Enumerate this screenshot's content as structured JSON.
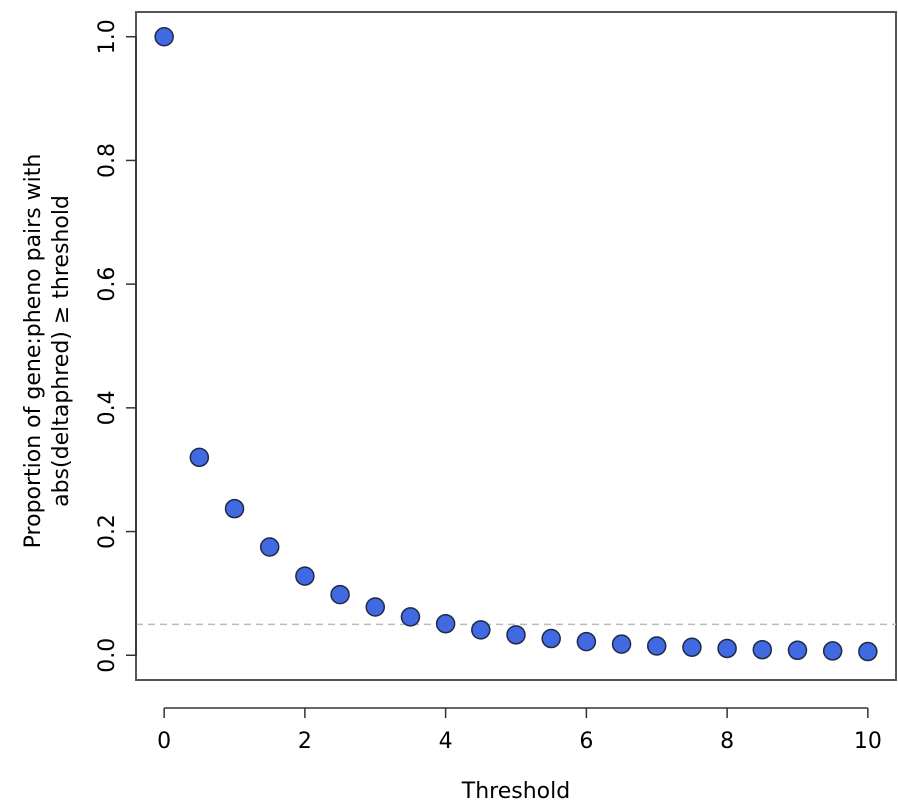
{
  "chart_data": {
    "type": "scatter",
    "title": "",
    "xlabel": "Threshold",
    "ylabel_lines": [
      "Proportion of gene:pheno pairs with",
      "abs(deltaphred) ≥ threshold"
    ],
    "xlim": [
      -0.4,
      10.4
    ],
    "ylim": [
      -0.04,
      1.04
    ],
    "x_ticks": [
      0,
      2,
      4,
      6,
      8,
      10
    ],
    "x_tick_labels": [
      "0",
      "2",
      "4",
      "6",
      "8",
      "10"
    ],
    "y_ticks": [
      0.0,
      0.2,
      0.4,
      0.6,
      0.8,
      1.0
    ],
    "y_tick_labels": [
      "0.0",
      "0.2",
      "0.4",
      "0.6",
      "0.8",
      "1.0"
    ],
    "reference_line": {
      "y": 0.05,
      "style": "dashed",
      "color": "#bbbbbb"
    },
    "point_fill": "#4169e1",
    "point_edge": "#1f2a44",
    "grid": false,
    "legend": "none",
    "x": [
      0,
      0.5,
      1,
      1.5,
      2,
      2.5,
      3,
      3.5,
      4,
      4.5,
      5,
      5.5,
      6,
      6.5,
      7,
      7.5,
      8,
      8.5,
      9,
      9.5,
      10
    ],
    "y": [
      1.0,
      0.32,
      0.237,
      0.175,
      0.128,
      0.098,
      0.078,
      0.062,
      0.051,
      0.041,
      0.033,
      0.027,
      0.022,
      0.018,
      0.015,
      0.013,
      0.011,
      0.009,
      0.008,
      0.007,
      0.006
    ]
  }
}
